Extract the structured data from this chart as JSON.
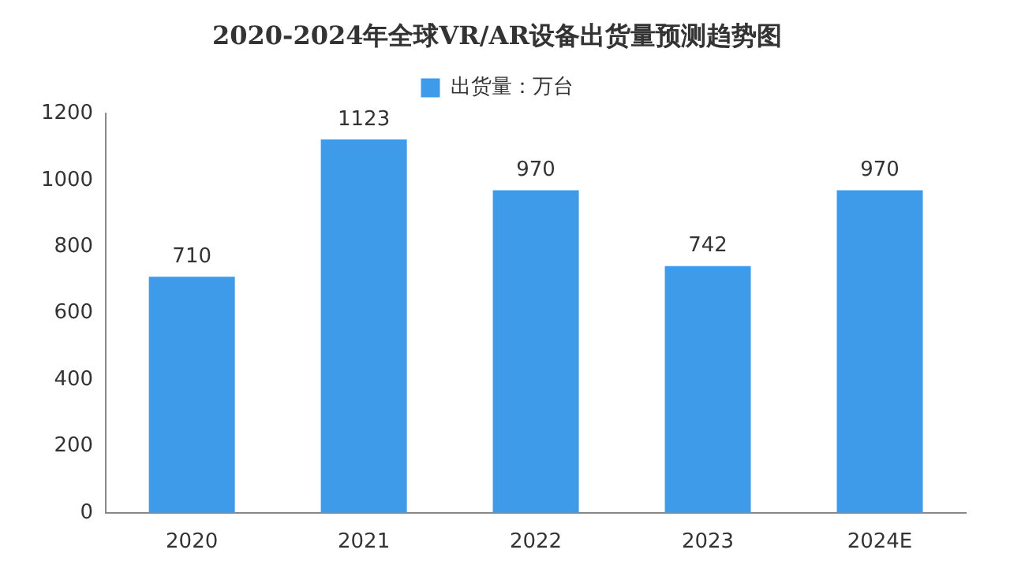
{
  "chart_data": {
    "type": "bar",
    "title": "2020-2024年全球VR/AR设备出货量预测趋势图",
    "categories": [
      "2020",
      "2021",
      "2022",
      "2023",
      "2024E"
    ],
    "series": [
      {
        "name": "出货量：万台",
        "color": "#3d9be9",
        "values": [
          710,
          1123,
          970,
          742,
          970
        ]
      }
    ],
    "ylim": [
      0,
      1200
    ],
    "yticks": [
      0,
      200,
      400,
      600,
      800,
      1000,
      1200
    ],
    "grid": false,
    "legend": "top",
    "data_labels": true
  }
}
